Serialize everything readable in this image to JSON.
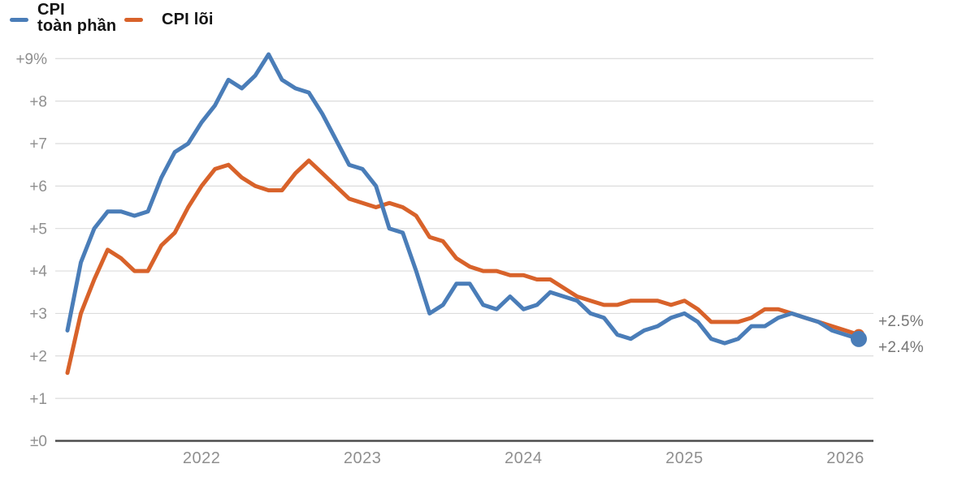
{
  "legend": {
    "headline_label": "CPI\ntoàn phần",
    "core_label": "CPI lõi"
  },
  "end_labels": {
    "core": "+2.5%",
    "headline": "+2.4%"
  },
  "colors": {
    "headline_line": "#4a7db8",
    "core_line": "#d8622a",
    "gridline": "#dcdcdc",
    "zero_axis": "#4d4d4d",
    "tick_text": "#8f8f8f",
    "end_label_text": "#767676",
    "legend_text": "#141414"
  },
  "chart_data": {
    "type": "line",
    "title": "",
    "xlabel": "",
    "ylabel": "",
    "x_unit": "month",
    "x_first_point": "2021-03",
    "x_last_point": "2026-02",
    "ylim": [
      0,
      9
    ],
    "grid": true,
    "legend_position": "top-left",
    "y_ticks": [
      {
        "value": 0,
        "label": "±0"
      },
      {
        "value": 1,
        "label": "+1"
      },
      {
        "value": 2,
        "label": "+2"
      },
      {
        "value": 3,
        "label": "+3"
      },
      {
        "value": 4,
        "label": "+4"
      },
      {
        "value": 5,
        "label": "+5"
      },
      {
        "value": 6,
        "label": "+6"
      },
      {
        "value": 7,
        "label": "+7"
      },
      {
        "value": 8,
        "label": "+8"
      },
      {
        "value": 9,
        "label": "+9%"
      }
    ],
    "x_ticks": [
      {
        "label": "2022",
        "month_index": 10
      },
      {
        "label": "2023",
        "month_index": 22
      },
      {
        "label": "2024",
        "month_index": 34
      },
      {
        "label": "2025",
        "month_index": 46
      },
      {
        "label": "2026",
        "month_index": 58
      }
    ],
    "series": [
      {
        "id": "core",
        "name": "CPI lõi",
        "color": "#d8622a",
        "end_value_label": "+2.5%",
        "values": [
          1.6,
          3.0,
          3.8,
          4.5,
          4.3,
          4.0,
          4.0,
          4.6,
          4.9,
          5.5,
          6.0,
          6.4,
          6.5,
          6.2,
          6.0,
          5.9,
          5.9,
          6.3,
          6.6,
          6.3,
          6.0,
          5.7,
          5.6,
          5.5,
          5.6,
          5.5,
          5.3,
          4.8,
          4.7,
          4.3,
          4.1,
          4.0,
          4.0,
          3.9,
          3.9,
          3.8,
          3.8,
          3.6,
          3.4,
          3.3,
          3.2,
          3.2,
          3.3,
          3.3,
          3.3,
          3.2,
          3.3,
          3.1,
          2.8,
          2.8,
          2.8,
          2.9,
          3.1,
          3.1,
          3.0,
          2.9,
          2.8,
          2.7,
          2.6,
          2.5
        ]
      },
      {
        "id": "headline",
        "name": "CPI toàn phần",
        "color": "#4a7db8",
        "end_value_label": "+2.4%",
        "values": [
          2.6,
          4.2,
          5.0,
          5.4,
          5.4,
          5.3,
          5.4,
          6.2,
          6.8,
          7.0,
          7.5,
          7.9,
          8.5,
          8.3,
          8.6,
          9.1,
          8.5,
          8.3,
          8.2,
          7.7,
          7.1,
          6.5,
          6.4,
          6.0,
          5.0,
          4.9,
          4.0,
          3.0,
          3.2,
          3.7,
          3.7,
          3.2,
          3.1,
          3.4,
          3.1,
          3.2,
          3.5,
          3.4,
          3.3,
          3.0,
          2.9,
          2.5,
          2.4,
          2.6,
          2.7,
          2.9,
          3.0,
          2.8,
          2.4,
          2.3,
          2.4,
          2.7,
          2.7,
          2.9,
          3.0,
          2.9,
          2.8,
          2.6,
          2.5,
          2.4
        ]
      }
    ]
  }
}
